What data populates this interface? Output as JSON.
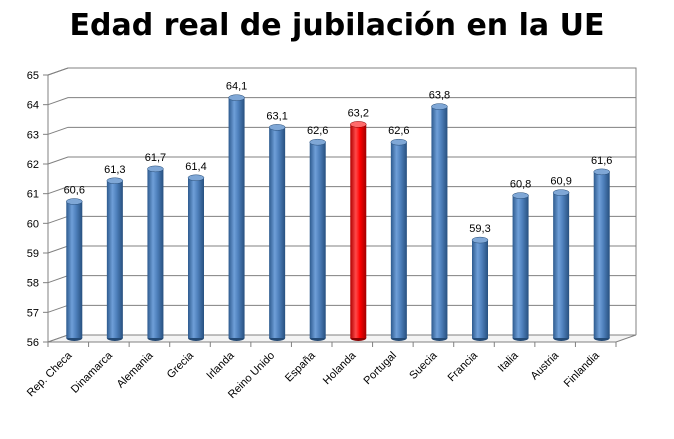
{
  "chart_data": {
    "type": "bar",
    "title": "Edad real de jubilación en la UE",
    "xlabel": "",
    "ylabel": "",
    "ylim": [
      56,
      65
    ],
    "yticks": [
      56,
      57,
      58,
      59,
      60,
      61,
      62,
      63,
      64,
      65
    ],
    "grid": true,
    "legend": "none",
    "categories": [
      "Rep. Checa",
      "Dinamarca",
      "Alemania",
      "Grecia",
      "Irlanda",
      "Reino Unido",
      "España",
      "Holanda",
      "Portugal",
      "Suecia",
      "Francia",
      "Italia",
      "Austria",
      "Finlandia"
    ],
    "values": [
      60.6,
      61.3,
      61.7,
      61.4,
      64.1,
      63.1,
      62.6,
      63.2,
      62.6,
      63.8,
      59.3,
      60.8,
      60.9,
      61.6
    ],
    "value_labels": [
      "60,6",
      "61,3",
      "61,7",
      "61,4",
      "64,1",
      "63,1",
      "62,6",
      "63,2",
      "62,6",
      "63,8",
      "59,3",
      "60,8",
      "60,9",
      "61,6"
    ],
    "highlight_category": "Holanda",
    "colors": {
      "bar": "#4f81bd",
      "bar_highlight": "#ff0000",
      "grid": "#808080"
    }
  }
}
